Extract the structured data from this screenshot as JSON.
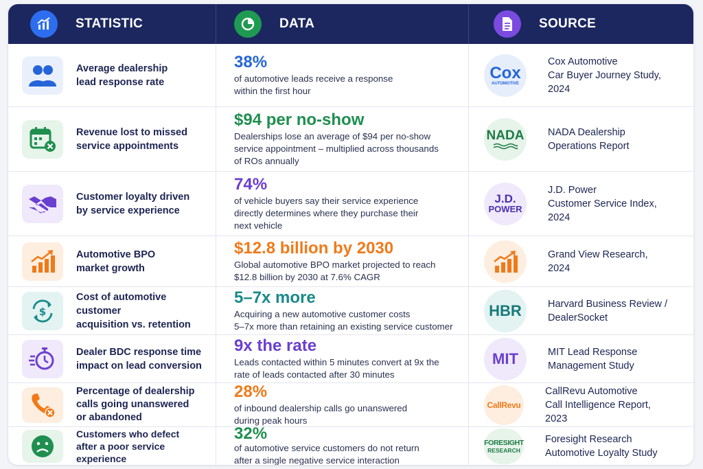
{
  "header": {
    "statistic": "STATISTIC",
    "data": "DATA",
    "source": "SOURCE"
  },
  "colors": {
    "header_bg": "#1c2760",
    "blue": "#2565d8",
    "green": "#1f8f4f",
    "purple": "#6a3fd0",
    "orange": "#f07a1a",
    "teal": "#1a8a8a"
  },
  "rows": [
    {
      "icon": "users-icon",
      "statistic": "Average dealership\nlead response rate",
      "value": "38%",
      "value_color": "#2565d8",
      "description": "of automotive leads receive a response\nwithin the first hour",
      "logo": "Cox",
      "logo_sub": "AUTOMOTIVE",
      "source": "Cox Automotive\nCar Buyer Journey Study,\n2024"
    },
    {
      "icon": "calendar-cancel-icon",
      "statistic": "Revenue lost to missed\nservice appointments",
      "value": "$94 per no-show",
      "value_color": "#1f8f4f",
      "description": "Dealerships lose an average of $94 per no-show\nservice appointment – multiplied across thousands\nof ROs annually",
      "logo": "NADA",
      "logo_sub": "",
      "source": "NADA Dealership\nOperations Report"
    },
    {
      "icon": "handshake-icon",
      "statistic": "Customer loyalty driven\nby service experience",
      "value": "74%",
      "value_color": "#6a3fd0",
      "description": "of vehicle buyers say their service experience\ndirectly determines where they purchase their\nnext vehicle",
      "logo": "J.D.",
      "logo_sub": "POWER",
      "source": "J.D. Power\nCustomer Service Index,\n2024"
    },
    {
      "icon": "growth-chart-icon",
      "statistic": "Automotive BPO\nmarket growth",
      "value": "$12.8 billion by 2030",
      "value_color": "#f07a1a",
      "description": "Global automotive BPO market projected to reach\n$12.8 billion by 2030 at 7.6% CAGR",
      "logo": "",
      "logo_sub": "",
      "source": "Grand View Research,\n2024"
    },
    {
      "icon": "dollar-cycle-icon",
      "statistic": "Cost of automotive customer\nacquisition vs. retention",
      "value": "5–7x more",
      "value_color": "#1a8a8a",
      "description": "Acquiring a new automotive customer costs\n5–7x more than retaining an existing service customer",
      "logo": "HBR",
      "logo_sub": "",
      "source": "Harvard Business Review /\nDealerSocket"
    },
    {
      "icon": "stopwatch-icon",
      "statistic": "Dealer BDC response time\nimpact on lead conversion",
      "value": "9x the rate",
      "value_color": "#6a3fd0",
      "description": "Leads contacted within 5 minutes convert at 9x the\nrate of leads contacted after 30 minutes",
      "logo": "MIT",
      "logo_sub": "",
      "source": "MIT Lead Response\nManagement Study"
    },
    {
      "icon": "phone-missed-icon",
      "statistic": "Percentage of dealership\ncalls going unanswered\nor abandoned",
      "value": "28%",
      "value_color": "#f07a1a",
      "description": "of inbound dealership calls go unanswered\nduring peak hours",
      "logo": "CallRevu",
      "logo_sub": "",
      "source": "CallRevu Automotive\nCall Intelligence Report,\n2023"
    },
    {
      "icon": "sad-face-icon",
      "statistic": "Customers who defect\nafter a poor service\nexperience",
      "value": "32%",
      "value_color": "#1f8f4f",
      "description": "of automotive service customers do not return\nafter a single negative service interaction",
      "logo": "FORESIGHT",
      "logo_sub": "RESEARCH",
      "source": "Foresight Research\nAutomotive Loyalty Study"
    }
  ]
}
